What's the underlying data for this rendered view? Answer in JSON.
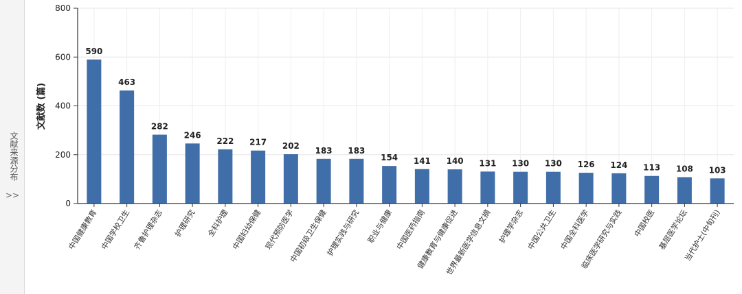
{
  "side_panel": {
    "label": "文献来源分布",
    "toggle": ">>"
  },
  "chart_data": {
    "type": "bar",
    "ylabel": "文献数 (篇)",
    "ylim": [
      0,
      800
    ],
    "yticks": [
      0,
      200,
      400,
      600,
      800
    ],
    "grid": true,
    "bar_color": "#3f6ea9",
    "categories": [
      "中国健康教育",
      "中国学校卫生",
      "齐鲁护理杂志",
      "护理研究",
      "全科护理",
      "中国妇幼保健",
      "现代预防医学",
      "中国初级卫生保健",
      "护理实践与研究",
      "职业与健康",
      "中国医药指南",
      "健康教育与健康促进",
      "世界最新医学信息文摘",
      "护理学杂志",
      "中国公共卫生",
      "中国全科医学",
      "临床医学研究与实践",
      "中国校医",
      "基层医学论坛",
      "当代护士(中旬刊)"
    ],
    "values": [
      590,
      463,
      282,
      246,
      222,
      217,
      202,
      183,
      183,
      154,
      141,
      140,
      131,
      130,
      130,
      126,
      124,
      113,
      108,
      103
    ]
  }
}
